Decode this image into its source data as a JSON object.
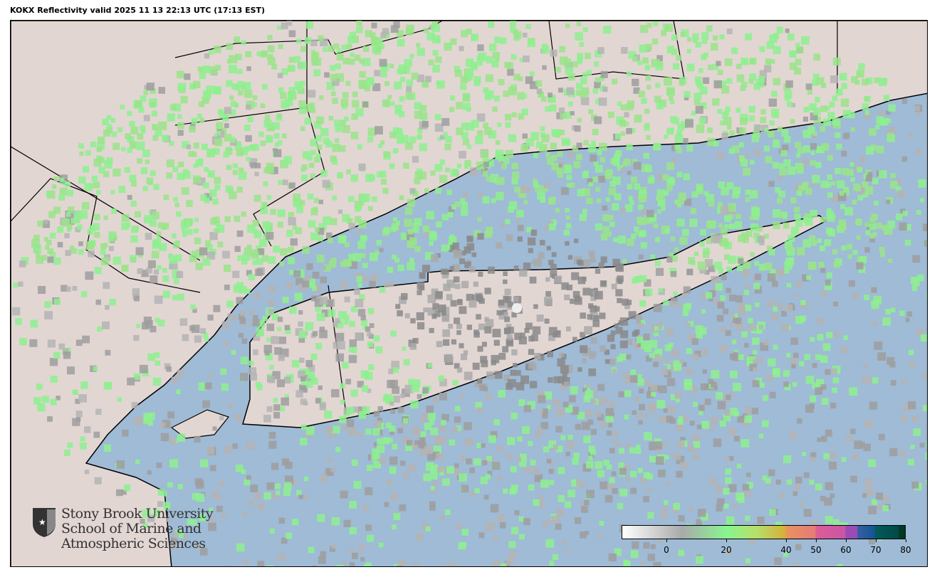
{
  "title": "KOKX Reflectivity valid 2025 11 13 22:13 UTC (17:13 EST)",
  "map": {
    "radar_site": "KOKX",
    "colors": {
      "ocean": "#9fbbd6",
      "land": "#e2d6d3",
      "border": "#000000"
    }
  },
  "logo": {
    "line1": "Stony Brook University",
    "line2": "School of Marine and",
    "line3": "Atmospheric Sciences",
    "icon": "shield-star-icon"
  },
  "colorbar": {
    "units_range": [
      -15,
      80
    ],
    "ticks": [
      0,
      20,
      40,
      50,
      60,
      70,
      80
    ],
    "stops": [
      {
        "v": -15,
        "c": "#ffffff"
      },
      {
        "v": 5,
        "c": "#aaaaaa"
      },
      {
        "v": 20,
        "c": "#88f590"
      },
      {
        "v": 30,
        "c": "#b5e06a"
      },
      {
        "v": 40,
        "c": "#d8ad38"
      },
      {
        "v": 40.01,
        "c": "#e99360"
      },
      {
        "v": 50,
        "c": "#e57a78"
      },
      {
        "v": 50.01,
        "c": "#de5e94"
      },
      {
        "v": 60,
        "c": "#c955a8"
      },
      {
        "v": 60.01,
        "c": "#9a4cb4"
      },
      {
        "v": 64,
        "c": "#9a4cb4"
      },
      {
        "v": 64.01,
        "c": "#3a5ea8"
      },
      {
        "v": 70,
        "c": "#10558e"
      },
      {
        "v": 70.01,
        "c": "#035a5a"
      },
      {
        "v": 78,
        "c": "#024848"
      },
      {
        "v": 78.01,
        "c": "#003a20"
      },
      {
        "v": 80,
        "c": "#003a20"
      }
    ]
  }
}
